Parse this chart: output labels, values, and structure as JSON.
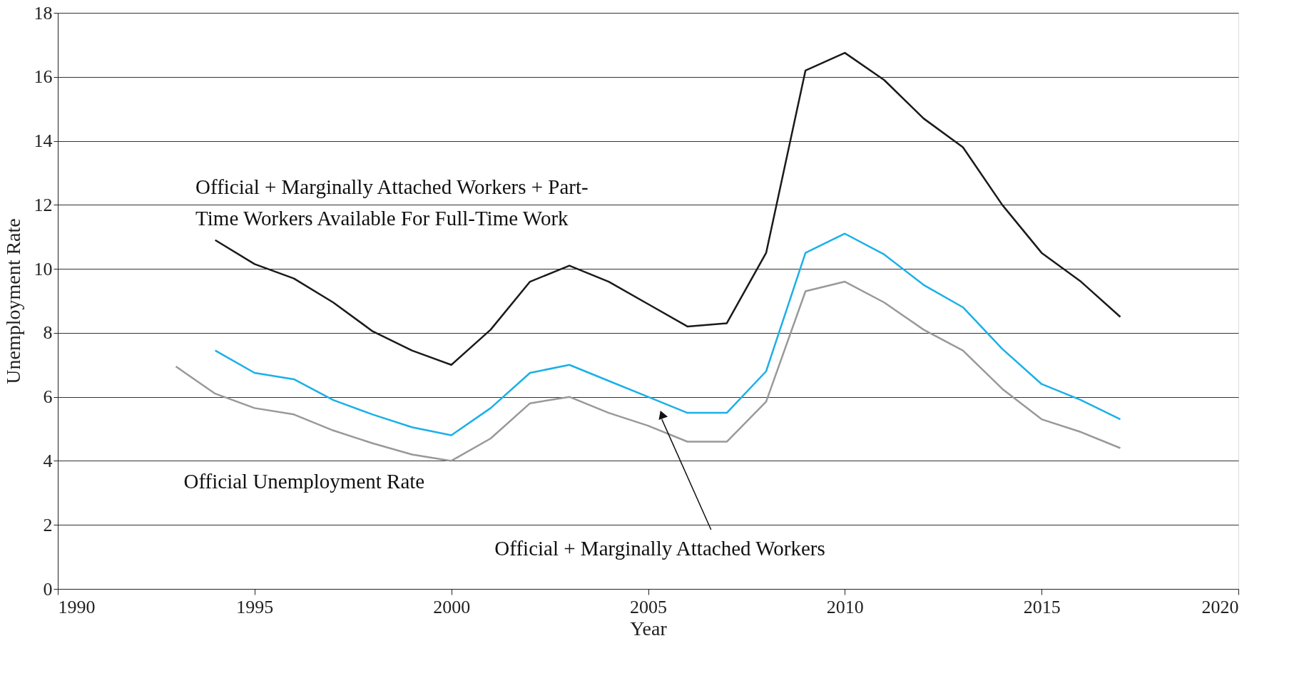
{
  "chart_data": {
    "type": "line",
    "xlabel": "Year",
    "ylabel": "Unemployment Rate",
    "xlim": [
      1990,
      2020
    ],
    "xticks": [
      1990,
      1995,
      2000,
      2005,
      2010,
      2015,
      2020
    ],
    "ylim": [
      0,
      18
    ],
    "yticks": [
      0,
      2,
      4,
      6,
      8,
      10,
      12,
      14,
      16,
      18
    ],
    "grid": "y",
    "legend": false,
    "marker": "none",
    "line_style": "solid",
    "series": [
      {
        "name": "Official + Marginally Attached Workers + Part-\nTime Workers Available For Full-Time Work",
        "color": "#1a1a1a",
        "x": [
          1994,
          1995,
          1996,
          1997,
          1998,
          1999,
          2000,
          2001,
          2002,
          2003,
          2004,
          2005,
          2006,
          2007,
          2008,
          2009,
          2010,
          2011,
          2012,
          2013,
          2014,
          2015,
          2016,
          2017
        ],
        "values": [
          10.9,
          10.15,
          9.7,
          8.95,
          8.05,
          7.45,
          7.0,
          8.1,
          9.6,
          10.1,
          9.6,
          8.9,
          8.2,
          8.3,
          10.5,
          16.2,
          16.75,
          15.9,
          14.7,
          13.8,
          12.0,
          10.5,
          9.6,
          8.5
        ]
      },
      {
        "name": "Official + Marginally Attached Workers",
        "color": "#1ab0e8",
        "x": [
          1994,
          1995,
          1996,
          1997,
          1998,
          1999,
          2000,
          2001,
          2002,
          2003,
          2004,
          2005,
          2006,
          2007,
          2008,
          2009,
          2010,
          2011,
          2012,
          2013,
          2014,
          2015,
          2016,
          2017
        ],
        "values": [
          7.45,
          6.75,
          6.55,
          5.9,
          5.45,
          5.05,
          4.8,
          5.65,
          6.75,
          7.0,
          6.5,
          6.0,
          5.5,
          5.5,
          6.8,
          10.5,
          11.1,
          10.45,
          9.5,
          8.8,
          7.5,
          6.4,
          5.9,
          5.3
        ]
      },
      {
        "name": "Official Unemployment Rate",
        "color": "#999999",
        "x": [
          1993,
          1994,
          1995,
          1996,
          1997,
          1998,
          1999,
          2000,
          2001,
          2002,
          2003,
          2004,
          2005,
          2006,
          2007,
          2008,
          2009,
          2010,
          2011,
          2012,
          2013,
          2014,
          2015,
          2016,
          2017
        ],
        "values": [
          6.95,
          6.1,
          5.65,
          5.45,
          4.95,
          4.55,
          4.2,
          4.0,
          4.7,
          5.8,
          6.0,
          5.5,
          5.1,
          4.6,
          4.6,
          5.85,
          9.3,
          9.6,
          8.95,
          8.1,
          7.45,
          6.25,
          5.3,
          4.9,
          4.4
        ]
      }
    ]
  }
}
